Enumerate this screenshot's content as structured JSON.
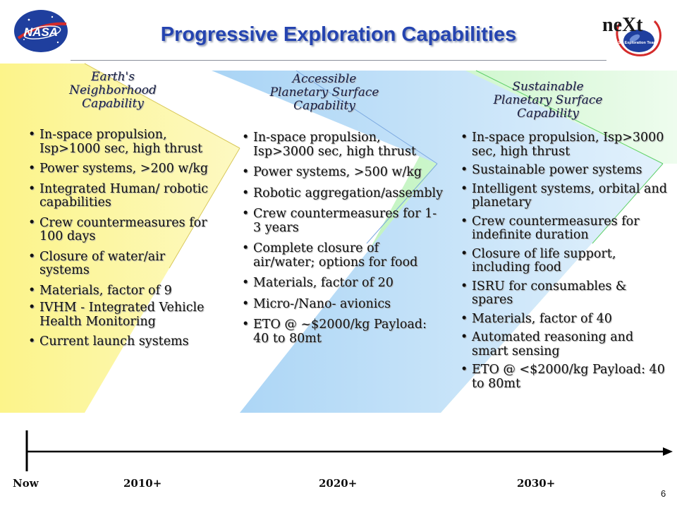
{
  "title": "Progressive Exploration Capabilities",
  "logos": {
    "left": "NASA",
    "right_main": "neXt",
    "right_sub": "NASA Exploration Team"
  },
  "columns": [
    {
      "heading": [
        "Earth's",
        "Neighborhood",
        "Capability"
      ],
      "items": [
        "In-space propulsion, Isp>1000 sec, high thrust",
        "Power systems, >200 w/kg",
        "Integrated Human/ robotic capabilities",
        "Crew countermeasures for 100 days",
        "Closure of water/air systems",
        "Materials, factor of 9",
        "IVHM - Integrated Vehicle Health Monitoring",
        "Current launch systems"
      ]
    },
    {
      "heading": [
        "Accessible",
        "Planetary Surface",
        "Capability"
      ],
      "items": [
        "In-space propulsion, Isp>3000 sec, high thrust",
        "Power systems,  >500 w/kg",
        "Robotic aggregation/assembly",
        "Crew countermeasures for 1-3 years",
        "Complete closure of air/water; options for food",
        "Materials, factor of 20",
        "Micro-/Nano-  avionics",
        "ETO @ ~$2000/kg Payload: 40 to 80mt"
      ]
    },
    {
      "heading": [
        "Sustainable",
        "Planetary Surface",
        "Capability"
      ],
      "items": [
        "In-space propulsion, Isp>3000 sec, high thrust",
        "Sustainable power systems",
        "Intelligent systems, orbital and planetary",
        "Crew countermeasures for indefinite duration",
        "Closure of life support, including food",
        "ISRU for consumables & spares",
        "Materials, factor of 40",
        "Automated reasoning and smart sensing",
        "ETO @ <$2000/kg Payload: 40 to 80mt"
      ]
    }
  ],
  "timeline": [
    "Now",
    "2010+",
    "2020+",
    "2030+"
  ],
  "page_number": "6",
  "colors": {
    "title": "#2544b0",
    "band1": "#fcf27e",
    "band2": "#b8dcf7",
    "band3": "#c4f5c2",
    "axis": "#000000"
  }
}
